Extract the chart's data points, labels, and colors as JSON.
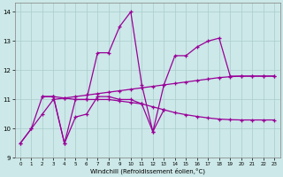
{
  "xlabel": "Windchill (Refroidissement éolien,°C)",
  "background_color": "#cce8e8",
  "line_color": "#990099",
  "grid_color": "#aacccc",
  "x": [
    0,
    1,
    2,
    3,
    4,
    5,
    6,
    7,
    8,
    9,
    10,
    11,
    12,
    13,
    14,
    15,
    16,
    17,
    18,
    19,
    20,
    21,
    22,
    23
  ],
  "line_jagged": [
    9.5,
    10.0,
    11.1,
    11.1,
    9.5,
    11.0,
    11.0,
    12.6,
    12.6,
    13.5,
    14.0,
    11.5,
    9.9,
    11.5,
    12.5,
    12.5,
    12.8,
    13.0,
    13.1,
    11.8,
    11.8,
    11.8,
    11.8,
    11.8
  ],
  "line_rise": [
    9.5,
    10.0,
    10.5,
    11.0,
    11.05,
    11.1,
    11.15,
    11.2,
    11.25,
    11.3,
    11.35,
    11.4,
    11.45,
    11.5,
    11.55,
    11.6,
    11.65,
    11.7,
    11.75,
    11.78,
    11.8,
    11.8,
    11.8,
    11.8
  ],
  "line_flat_dec": [
    null,
    null,
    11.1,
    11.1,
    11.05,
    11.0,
    11.0,
    11.0,
    11.0,
    10.95,
    10.9,
    10.85,
    10.75,
    10.65,
    10.55,
    10.48,
    10.42,
    10.37,
    10.33,
    10.31,
    10.3,
    10.3,
    10.3,
    10.3
  ],
  "line_v": [
    null,
    null,
    null,
    11.1,
    9.5,
    10.4,
    10.5,
    11.1,
    11.1,
    11.0,
    11.0,
    10.85,
    9.9,
    10.65,
    null,
    null,
    null,
    null,
    null,
    null,
    null,
    null,
    null,
    null
  ],
  "ylim": [
    9.0,
    14.3
  ],
  "xlim": [
    -0.5,
    23.5
  ],
  "xticks": [
    0,
    1,
    2,
    3,
    4,
    5,
    6,
    7,
    8,
    9,
    10,
    11,
    12,
    13,
    14,
    15,
    16,
    17,
    18,
    19,
    20,
    21,
    22,
    23
  ],
  "yticks": [
    9,
    10,
    11,
    12,
    13,
    14
  ]
}
